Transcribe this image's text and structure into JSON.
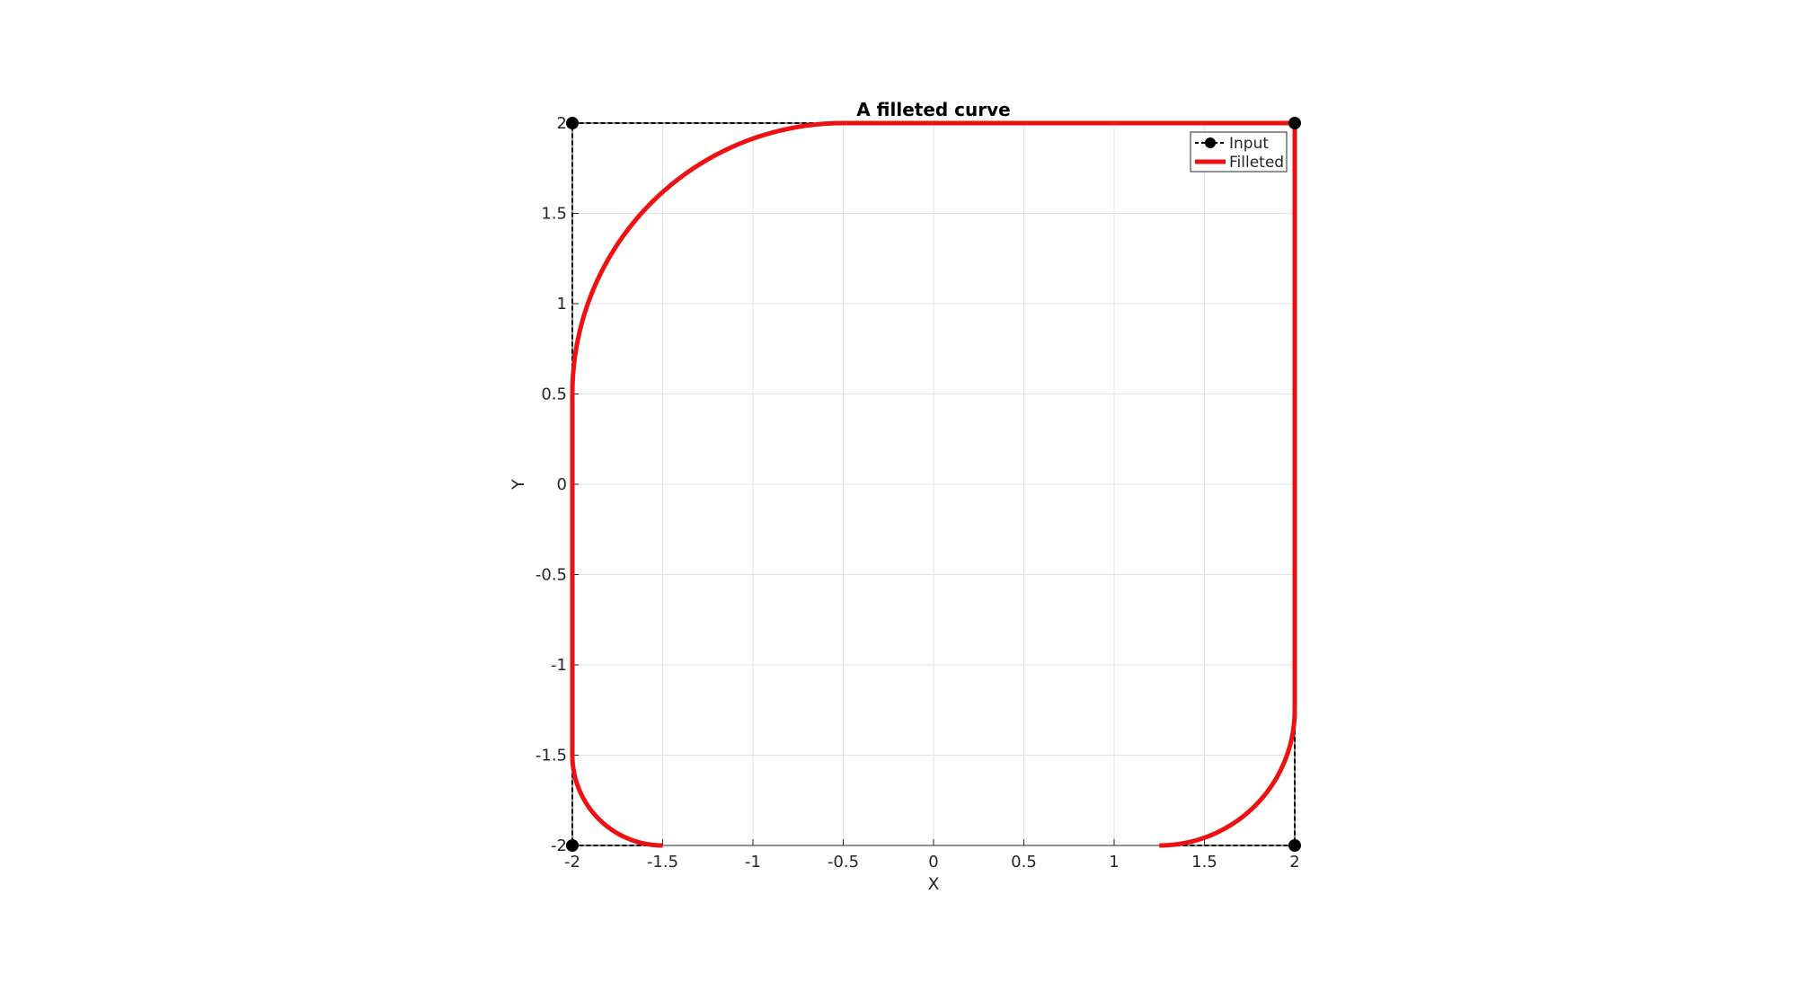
{
  "chart_data": {
    "type": "line",
    "title": "A filleted curve",
    "xlabel": "X",
    "ylabel": "Y",
    "xlim": [
      -2,
      2
    ],
    "ylim": [
      -2,
      2
    ],
    "xticks": [
      -2,
      -1.5,
      -1,
      -0.5,
      0,
      0.5,
      1,
      1.5,
      2
    ],
    "yticks": [
      -2,
      -1.5,
      -1,
      -0.5,
      0,
      0.5,
      1,
      1.5,
      2
    ],
    "xtick_labels": [
      "-2",
      "-1.5",
      "-1",
      "-0.5",
      "0",
      "0.5",
      "1",
      "1.5",
      "2"
    ],
    "ytick_labels": [
      "-2",
      "-1.5",
      "-1",
      "-0.5",
      "0",
      "0.5",
      "1",
      "1.5",
      "2"
    ],
    "grid": true,
    "legend_position": "top-right",
    "series": [
      {
        "name": "Input",
        "style": "dashed",
        "marker": "circle",
        "color": "#000000",
        "x": [
          -1.5,
          -2,
          -2,
          2,
          2,
          1.25
        ],
        "y": [
          -2,
          -2,
          2,
          2,
          -2,
          -2
        ]
      },
      {
        "name": "Filleted",
        "style": "solid",
        "color": "#ee1111",
        "segments": [
          {
            "kind": "arc",
            "cx": -1.5,
            "cy": -1.5,
            "r": 0.5,
            "from_deg": 270,
            "to_deg": 180
          },
          {
            "kind": "line",
            "x": [
              -2,
              -2
            ],
            "y": [
              -1.5,
              0.5
            ]
          },
          {
            "kind": "arc",
            "cx": -0.5,
            "cy": 0.5,
            "r": 1.5,
            "from_deg": 180,
            "to_deg": 90
          },
          {
            "kind": "line",
            "x": [
              -0.5,
              2
            ],
            "y": [
              2,
              2
            ]
          },
          {
            "kind": "line",
            "x": [
              2,
              2
            ],
            "y": [
              2,
              -1.25
            ]
          },
          {
            "kind": "arc",
            "cx": 1.25,
            "cy": -1.25,
            "r": 0.75,
            "from_deg": 0,
            "to_deg": -90
          }
        ]
      }
    ]
  }
}
